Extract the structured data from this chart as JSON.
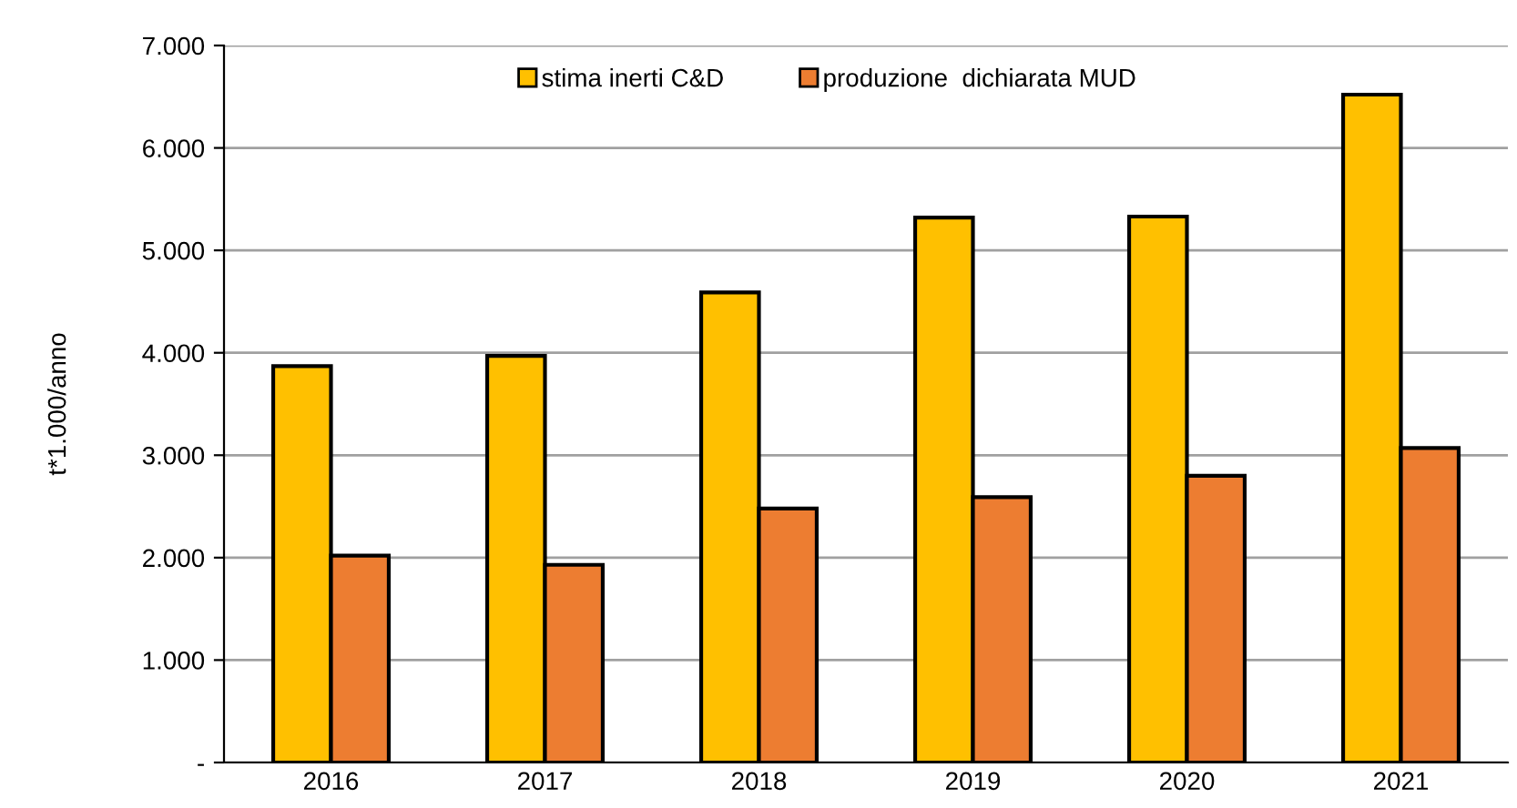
{
  "chart_data": {
    "type": "bar",
    "ylabel": "t*1.000/anno",
    "categories": [
      "2016",
      "2017",
      "2018",
      "2019",
      "2020",
      "2021"
    ],
    "series": [
      {
        "name": "stima inerti C&D",
        "color": "#ffc000",
        "values": [
          3870,
          3970,
          4590,
          5320,
          5330,
          6520
        ]
      },
      {
        "name": "produzione  dichiarata MUD",
        "color": "#ed7d31",
        "values": [
          2020,
          1930,
          2480,
          2590,
          2800,
          3070
        ]
      }
    ],
    "ylim": [
      0,
      7000
    ],
    "yticks": [
      {
        "value": 0,
        "label": "-"
      },
      {
        "value": 1000,
        "label": "1.000"
      },
      {
        "value": 2000,
        "label": "2.000"
      },
      {
        "value": 3000,
        "label": "3.000"
      },
      {
        "value": 4000,
        "label": "4.000"
      },
      {
        "value": 5000,
        "label": "5.000"
      },
      {
        "value": 6000,
        "label": "6.000"
      },
      {
        "value": 7000,
        "label": "7.000"
      }
    ],
    "grid": "y",
    "legend": "top"
  }
}
